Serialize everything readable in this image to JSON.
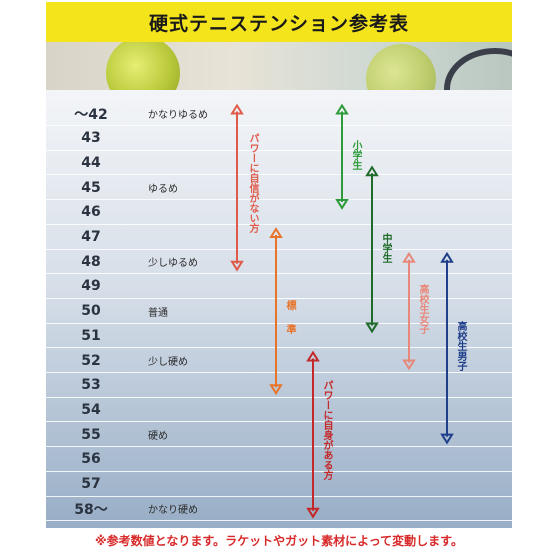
{
  "title": "硬式テニステンション参考表",
  "rows": [
    {
      "num": "～42",
      "label": "かなりゆるめ"
    },
    {
      "num": "43",
      "label": ""
    },
    {
      "num": "44",
      "label": ""
    },
    {
      "num": "45",
      "label": "ゆるめ"
    },
    {
      "num": "46",
      "label": ""
    },
    {
      "num": "47",
      "label": ""
    },
    {
      "num": "48",
      "label": "少しゆるめ"
    },
    {
      "num": "49",
      "label": ""
    },
    {
      "num": "50",
      "label": "普通"
    },
    {
      "num": "51",
      "label": ""
    },
    {
      "num": "52",
      "label": "少し硬め"
    },
    {
      "num": "53",
      "label": ""
    },
    {
      "num": "54",
      "label": ""
    },
    {
      "num": "55",
      "label": "硬め"
    },
    {
      "num": "56",
      "label": ""
    },
    {
      "num": "57",
      "label": ""
    },
    {
      "num": "58～",
      "label": "かなり硬め"
    }
  ],
  "ranges": [
    {
      "label": "パワーに自信がない方",
      "from": 42,
      "to": 48,
      "color": "#e05a4a"
    },
    {
      "label": "標準",
      "from": 47,
      "to": 53,
      "color": "#e8742a"
    },
    {
      "label": "パワーに自身がある方",
      "from": 52,
      "to": 58,
      "color": "#c42828"
    },
    {
      "label": "小学生",
      "from": 42,
      "to": 45.5,
      "color": "#2e9a3a"
    },
    {
      "label": "中学生",
      "from": 44.5,
      "to": 50.5,
      "color": "#1f6b2a"
    },
    {
      "label": "高校生女子",
      "from": 48,
      "to": 52,
      "color": "#e8887a"
    },
    {
      "label": "高校生男子",
      "from": 48,
      "to": 55,
      "color": "#1f3f8a"
    }
  ],
  "note": "※参考数値となります。ラケットやガット素材によって変動します。"
}
